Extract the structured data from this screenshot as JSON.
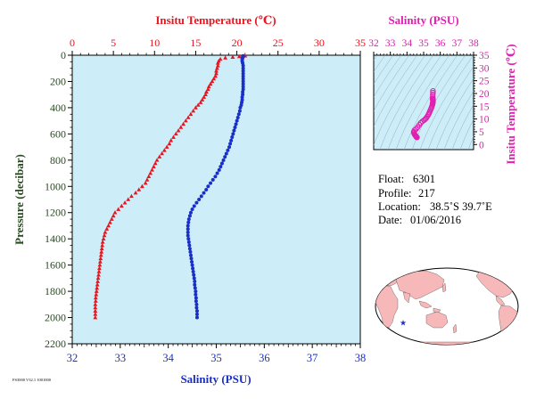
{
  "colors": {
    "temperature": "#e8141e",
    "salinity": "#1a2ec8",
    "pressure_axis": "#2a4a22",
    "ts_axis": "#e01fb0",
    "plot_bg": "#cdeef8",
    "land": "#f6b8b8",
    "ocean": "#ffffff"
  },
  "profile_chart": {
    "top_axis_label": "Insitu Temperature (℃)",
    "bottom_axis_label": "Salinity (PSU)",
    "left_axis_label": "Pressure (decibar)",
    "footer_text": "FS3000 V32.1 1001000"
  },
  "ts_chart": {
    "top_axis_label": "Salinity (PSU)",
    "right_axis_label": "Insitu Temperature (℃)"
  },
  "info": {
    "float_label": "Float:",
    "float_value": "6301",
    "profile_label": "Profile:",
    "profile_value": "217",
    "location_label": "Location:",
    "location_value": "38.5˚S  39.7˚E",
    "date_label": "Date:",
    "date_value": "01/06/2016"
  },
  "map": {
    "marker_symbol": "★",
    "marker_lon": 39.7,
    "marker_lat": -38.5
  },
  "chart_data": [
    {
      "type": "scatter",
      "title": "",
      "x_top": {
        "label": "Insitu Temperature (℃)",
        "range": [
          0,
          35
        ],
        "ticks": [
          0,
          5,
          10,
          15,
          20,
          25,
          30,
          35
        ]
      },
      "x_bottom": {
        "label": "Salinity (PSU)",
        "range": [
          32,
          38
        ],
        "ticks": [
          32,
          33,
          34,
          35,
          36,
          37,
          38
        ]
      },
      "y": {
        "label": "Pressure (decibar)",
        "range": [
          0,
          2200
        ],
        "inverted": true,
        "ticks": [
          0,
          200,
          400,
          600,
          800,
          1000,
          1200,
          1400,
          1600,
          1800,
          2000,
          2200
        ]
      },
      "series": [
        {
          "name": "",
          "axis": "top",
          "marker": "triangle",
          "points": [
            [
              21.0,
              5
            ],
            [
              20.3,
              10
            ],
            [
              19.5,
              15
            ],
            [
              18.6,
              20
            ],
            [
              18.0,
              30
            ],
            [
              17.8,
              45
            ],
            [
              17.7,
              60
            ],
            [
              17.7,
              80
            ],
            [
              17.6,
              100
            ],
            [
              17.5,
              120
            ],
            [
              17.5,
              140
            ],
            [
              17.4,
              160
            ],
            [
              17.2,
              180
            ],
            [
              17.0,
              200
            ],
            [
              16.8,
              220
            ],
            [
              16.6,
              240
            ],
            [
              16.5,
              260
            ],
            [
              16.3,
              280
            ],
            [
              16.2,
              300
            ],
            [
              16.0,
              320
            ],
            [
              15.8,
              340
            ],
            [
              15.6,
              360
            ],
            [
              15.3,
              380
            ],
            [
              15.0,
              400
            ],
            [
              14.7,
              425
            ],
            [
              14.4,
              450
            ],
            [
              14.1,
              475
            ],
            [
              13.8,
              500
            ],
            [
              13.5,
              525
            ],
            [
              13.2,
              550
            ],
            [
              12.9,
              575
            ],
            [
              12.6,
              600
            ],
            [
              12.3,
              625
            ],
            [
              12.0,
              650
            ],
            [
              11.8,
              675
            ],
            [
              11.5,
              700
            ],
            [
              11.2,
              725
            ],
            [
              10.9,
              750
            ],
            [
              10.6,
              775
            ],
            [
              10.3,
              800
            ],
            [
              10.1,
              825
            ],
            [
              9.9,
              850
            ],
            [
              9.7,
              875
            ],
            [
              9.5,
              900
            ],
            [
              9.3,
              925
            ],
            [
              9.1,
              950
            ],
            [
              8.9,
              975
            ],
            [
              8.5,
              1000
            ],
            [
              8.1,
              1025
            ],
            [
              7.7,
              1050
            ],
            [
              7.2,
              1075
            ],
            [
              6.8,
              1100
            ],
            [
              6.4,
              1125
            ],
            [
              6.0,
              1150
            ],
            [
              5.6,
              1175
            ],
            [
              5.2,
              1200
            ],
            [
              5.0,
              1225
            ],
            [
              4.8,
              1250
            ],
            [
              4.6,
              1275
            ],
            [
              4.4,
              1300
            ],
            [
              4.2,
              1325
            ],
            [
              4.0,
              1350
            ],
            [
              3.9,
              1375
            ],
            [
              3.8,
              1400
            ],
            [
              3.7,
              1425
            ],
            [
              3.65,
              1450
            ],
            [
              3.6,
              1475
            ],
            [
              3.55,
              1500
            ],
            [
              3.5,
              1525
            ],
            [
              3.45,
              1550
            ],
            [
              3.4,
              1575
            ],
            [
              3.35,
              1600
            ],
            [
              3.3,
              1625
            ],
            [
              3.25,
              1650
            ],
            [
              3.2,
              1675
            ],
            [
              3.15,
              1700
            ],
            [
              3.1,
              1725
            ],
            [
              3.05,
              1750
            ],
            [
              3.0,
              1775
            ],
            [
              2.95,
              1800
            ],
            [
              2.9,
              1825
            ],
            [
              2.85,
              1850
            ],
            [
              2.85,
              1875
            ],
            [
              2.8,
              1900
            ],
            [
              2.8,
              1925
            ],
            [
              2.8,
              1950
            ],
            [
              2.8,
              1975
            ],
            [
              2.8,
              2000
            ]
          ]
        },
        {
          "name": "",
          "axis": "bottom",
          "marker": "circle",
          "points": [
            [
              35.56,
              5
            ],
            [
              35.56,
              10
            ],
            [
              35.55,
              15
            ],
            [
              35.55,
              20
            ],
            [
              35.54,
              30
            ],
            [
              35.54,
              45
            ],
            [
              35.55,
              60
            ],
            [
              35.56,
              80
            ],
            [
              35.56,
              100
            ],
            [
              35.56,
              120
            ],
            [
              35.56,
              140
            ],
            [
              35.56,
              160
            ],
            [
              35.56,
              180
            ],
            [
              35.56,
              200
            ],
            [
              35.56,
              220
            ],
            [
              35.56,
              240
            ],
            [
              35.56,
              260
            ],
            [
              35.55,
              280
            ],
            [
              35.55,
              300
            ],
            [
              35.54,
              320
            ],
            [
              35.54,
              340
            ],
            [
              35.53,
              360
            ],
            [
              35.52,
              380
            ],
            [
              35.5,
              400
            ],
            [
              35.49,
              425
            ],
            [
              35.47,
              450
            ],
            [
              35.45,
              475
            ],
            [
              35.43,
              500
            ],
            [
              35.41,
              525
            ],
            [
              35.39,
              550
            ],
            [
              35.37,
              575
            ],
            [
              35.35,
              600
            ],
            [
              35.33,
              625
            ],
            [
              35.31,
              650
            ],
            [
              35.29,
              675
            ],
            [
              35.27,
              700
            ],
            [
              35.24,
              725
            ],
            [
              35.21,
              750
            ],
            [
              35.18,
              775
            ],
            [
              35.15,
              800
            ],
            [
              35.12,
              825
            ],
            [
              35.09,
              850
            ],
            [
              35.06,
              875
            ],
            [
              35.02,
              900
            ],
            [
              34.98,
              925
            ],
            [
              34.93,
              950
            ],
            [
              34.88,
              975
            ],
            [
              34.83,
              1000
            ],
            [
              34.79,
              1025
            ],
            [
              34.74,
              1050
            ],
            [
              34.69,
              1075
            ],
            [
              34.64,
              1100
            ],
            [
              34.59,
              1125
            ],
            [
              34.54,
              1150
            ],
            [
              34.5,
              1175
            ],
            [
              34.47,
              1200
            ],
            [
              34.45,
              1225
            ],
            [
              34.43,
              1250
            ],
            [
              34.42,
              1275
            ],
            [
              34.41,
              1300
            ],
            [
              34.41,
              1325
            ],
            [
              34.41,
              1350
            ],
            [
              34.41,
              1375
            ],
            [
              34.42,
              1400
            ],
            [
              34.43,
              1425
            ],
            [
              34.44,
              1450
            ],
            [
              34.45,
              1475
            ],
            [
              34.46,
              1500
            ],
            [
              34.47,
              1525
            ],
            [
              34.48,
              1550
            ],
            [
              34.49,
              1575
            ],
            [
              34.5,
              1600
            ],
            [
              34.51,
              1625
            ],
            [
              34.52,
              1650
            ],
            [
              34.53,
              1675
            ],
            [
              34.54,
              1700
            ],
            [
              34.55,
              1725
            ],
            [
              34.55,
              1750
            ],
            [
              34.56,
              1775
            ],
            [
              34.57,
              1800
            ],
            [
              34.57,
              1825
            ],
            [
              34.58,
              1850
            ],
            [
              34.58,
              1875
            ],
            [
              34.59,
              1900
            ],
            [
              34.59,
              1925
            ],
            [
              34.6,
              1950
            ],
            [
              34.6,
              1975
            ],
            [
              34.6,
              2000
            ]
          ]
        }
      ]
    },
    {
      "type": "scatter",
      "title": "",
      "x": {
        "label": "Salinity (PSU)",
        "range": [
          32,
          38
        ],
        "ticks": [
          32,
          33,
          34,
          35,
          36,
          37,
          38
        ]
      },
      "y": {
        "label": "Insitu Temperature (℃)",
        "range": [
          -2,
          35
        ],
        "ticks": [
          0,
          5,
          10,
          15,
          20,
          25,
          30,
          35
        ]
      },
      "series": [
        {
          "name": "",
          "marker": "circle",
          "points": [
            [
              34.6,
              2.8
            ],
            [
              34.58,
              2.9
            ],
            [
              34.56,
              3.0
            ],
            [
              34.54,
              3.2
            ],
            [
              34.52,
              3.4
            ],
            [
              34.5,
              3.6
            ],
            [
              34.47,
              3.9
            ],
            [
              34.44,
              4.2
            ],
            [
              34.42,
              4.6
            ],
            [
              34.41,
              5.0
            ],
            [
              34.45,
              5.6
            ],
            [
              34.54,
              6.0
            ],
            [
              34.64,
              6.8
            ],
            [
              34.74,
              7.7
            ],
            [
              34.83,
              8.5
            ],
            [
              34.93,
              9.1
            ],
            [
              35.02,
              9.5
            ],
            [
              35.09,
              9.9
            ],
            [
              35.15,
              10.3
            ],
            [
              35.21,
              10.9
            ],
            [
              35.27,
              11.5
            ],
            [
              35.31,
              12.0
            ],
            [
              35.35,
              12.6
            ],
            [
              35.39,
              13.2
            ],
            [
              35.43,
              13.8
            ],
            [
              35.47,
              14.4
            ],
            [
              35.5,
              15.0
            ],
            [
              35.53,
              15.6
            ],
            [
              35.54,
              16.0
            ],
            [
              35.55,
              16.3
            ],
            [
              35.56,
              16.6
            ],
            [
              35.56,
              17.0
            ],
            [
              35.56,
              17.4
            ],
            [
              35.56,
              17.6
            ],
            [
              35.56,
              17.7
            ],
            [
              35.54,
              17.8
            ],
            [
              35.54,
              18.0
            ],
            [
              35.55,
              18.6
            ],
            [
              35.55,
              19.5
            ],
            [
              35.56,
              20.3
            ],
            [
              35.56,
              21.0
            ]
          ]
        }
      ]
    }
  ]
}
